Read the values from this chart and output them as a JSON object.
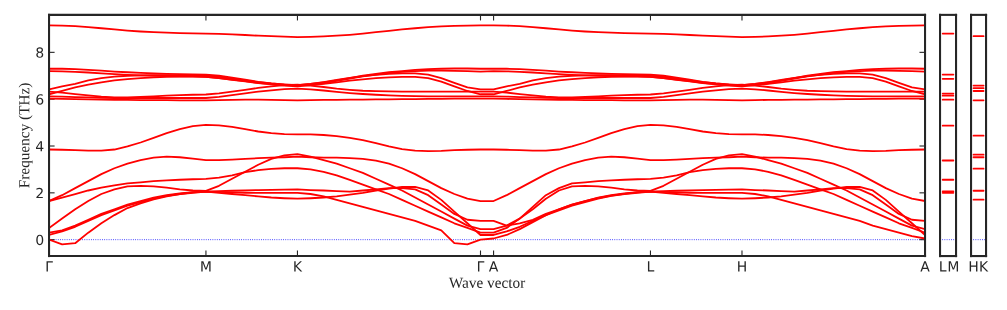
{
  "chart_data": [
    {
      "type": "line",
      "xlabel": "Wave vector",
      "ylabel": "Frequency (THz)",
      "color": "#ff0000",
      "line_style": "solid",
      "marker": "none",
      "grid": false,
      "ylim": [
        -0.7,
        9.6
      ],
      "categories": [
        "Γ",
        null,
        null,
        null,
        null,
        null,
        null,
        null,
        null,
        null,
        null,
        null,
        "M",
        null,
        null,
        null,
        null,
        null,
        null,
        "K",
        null,
        null,
        null,
        null,
        null,
        null,
        null,
        null,
        null,
        null,
        null,
        null,
        null,
        "Γ",
        "A",
        null,
        null,
        null,
        null,
        null,
        null,
        null,
        null,
        null,
        null,
        null,
        "L",
        null,
        null,
        null,
        null,
        null,
        null,
        "H",
        null,
        null,
        null,
        null,
        null,
        null,
        null,
        null,
        null,
        null,
        null,
        null,
        null,
        "A"
      ],
      "yticks": [
        0,
        2,
        4,
        6,
        8
      ],
      "ref_lines": [
        {
          "axis": "y",
          "value": 0,
          "color": "#0000ff",
          "line_style": "dotted"
        }
      ],
      "series": [
        {
          "values": [
            9.15,
            9.14,
            9.12,
            9.08,
            9.03,
            8.98,
            8.93,
            8.89,
            8.86,
            8.84,
            8.82,
            8.81,
            8.8,
            8.79,
            8.77,
            8.74,
            8.71,
            8.69,
            8.67,
            8.65,
            8.66,
            8.68,
            8.71,
            8.75,
            8.8,
            8.86,
            8.92,
            8.98,
            9.03,
            9.08,
            9.11,
            9.13,
            9.14,
            9.15,
            9.15,
            9.14,
            9.12,
            9.08,
            9.03,
            8.98,
            8.93,
            8.89,
            8.86,
            8.84,
            8.82,
            8.81,
            8.8,
            8.79,
            8.77,
            8.74,
            8.71,
            8.69,
            8.67,
            8.65,
            8.66,
            8.68,
            8.71,
            8.75,
            8.8,
            8.86,
            8.92,
            8.98,
            9.03,
            9.08,
            9.11,
            9.13,
            9.14,
            9.15
          ]
        },
        {
          "values": [
            7.3,
            7.3,
            7.28,
            7.25,
            7.22,
            7.18,
            7.15,
            7.12,
            7.1,
            7.08,
            7.07,
            7.06,
            7.05,
            7.0,
            6.92,
            6.83,
            6.74,
            6.67,
            6.62,
            6.6,
            6.65,
            6.72,
            6.8,
            6.9,
            7.0,
            7.08,
            7.15,
            7.2,
            7.25,
            7.28,
            7.3,
            7.31,
            7.31,
            7.3,
            7.3,
            7.3,
            7.28,
            7.25,
            7.22,
            7.18,
            7.15,
            7.12,
            7.1,
            7.08,
            7.07,
            7.06,
            7.05,
            7.0,
            6.92,
            6.83,
            6.74,
            6.67,
            6.62,
            6.6,
            6.65,
            6.72,
            6.8,
            6.9,
            7.0,
            7.08,
            7.15,
            7.2,
            7.25,
            7.28,
            7.3,
            7.31,
            7.31,
            7.3
          ]
        },
        {
          "values": [
            7.2,
            7.19,
            7.17,
            7.14,
            7.1,
            7.07,
            7.04,
            7.02,
            7.0,
            6.99,
            6.98,
            6.97,
            6.95,
            6.9,
            6.83,
            6.76,
            6.69,
            6.63,
            6.58,
            6.55,
            6.6,
            6.68,
            6.78,
            6.88,
            6.97,
            7.05,
            7.12,
            7.17,
            7.2,
            7.22,
            7.22,
            7.21,
            7.2,
            7.18,
            7.2,
            7.19,
            7.17,
            7.14,
            7.1,
            7.07,
            7.04,
            7.02,
            7.0,
            6.99,
            6.98,
            6.97,
            6.95,
            6.9,
            6.83,
            6.76,
            6.69,
            6.63,
            6.58,
            6.55,
            6.6,
            6.68,
            6.78,
            6.88,
            6.97,
            7.05,
            7.12,
            7.17,
            7.2,
            7.22,
            7.22,
            7.21,
            7.2,
            7.18
          ]
        },
        {
          "values": [
            6.42,
            6.55,
            6.65,
            6.8,
            6.9,
            6.96,
            7.0,
            7.02,
            7.03,
            7.03,
            7.02,
            7.01,
            7.0,
            6.95,
            6.88,
            6.8,
            6.73,
            6.67,
            6.63,
            6.6,
            6.65,
            6.73,
            6.82,
            6.91,
            6.98,
            7.04,
            7.08,
            7.1,
            7.1,
            7.05,
            6.9,
            6.7,
            6.5,
            6.42,
            6.42,
            6.55,
            6.65,
            6.8,
            6.9,
            6.96,
            7.0,
            7.02,
            7.03,
            7.03,
            7.02,
            7.01,
            7.0,
            6.95,
            6.88,
            6.8,
            6.73,
            6.67,
            6.63,
            6.6,
            6.65,
            6.73,
            6.82,
            6.91,
            6.98,
            7.04,
            7.08,
            7.1,
            7.1,
            7.05,
            6.9,
            6.7,
            6.5,
            6.42
          ]
        },
        {
          "values": [
            6.21,
            6.35,
            6.5,
            6.62,
            6.72,
            6.8,
            6.86,
            6.9,
            6.93,
            6.95,
            6.96,
            6.96,
            6.95,
            6.9,
            6.84,
            6.77,
            6.7,
            6.64,
            6.6,
            6.58,
            6.6,
            6.65,
            6.72,
            6.79,
            6.85,
            6.9,
            6.93,
            6.95,
            6.95,
            6.9,
            6.75,
            6.55,
            6.35,
            6.21,
            6.21,
            6.35,
            6.5,
            6.62,
            6.72,
            6.8,
            6.86,
            6.9,
            6.93,
            6.95,
            6.96,
            6.96,
            6.95,
            6.9,
            6.84,
            6.77,
            6.7,
            6.64,
            6.6,
            6.58,
            6.6,
            6.65,
            6.72,
            6.79,
            6.85,
            6.9,
            6.93,
            6.95,
            6.95,
            6.9,
            6.75,
            6.55,
            6.35,
            6.21
          ]
        },
        {
          "values": [
            6.32,
            6.28,
            6.22,
            6.16,
            6.11,
            6.08,
            6.08,
            6.1,
            6.12,
            6.15,
            6.17,
            6.19,
            6.2,
            6.25,
            6.32,
            6.4,
            6.48,
            6.55,
            6.6,
            6.62,
            6.58,
            6.52,
            6.45,
            6.4,
            6.36,
            6.34,
            6.33,
            6.32,
            6.32,
            6.32,
            6.32,
            6.32,
            6.32,
            6.32,
            6.32,
            6.28,
            6.22,
            6.16,
            6.11,
            6.08,
            6.08,
            6.1,
            6.12,
            6.15,
            6.17,
            6.19,
            6.2,
            6.25,
            6.32,
            6.4,
            6.48,
            6.55,
            6.6,
            6.62,
            6.58,
            6.52,
            6.45,
            6.4,
            6.36,
            6.34,
            6.33,
            6.32,
            6.32,
            6.32,
            6.32,
            6.32,
            6.32,
            6.32
          ]
        },
        {
          "values": [
            6.12,
            6.11,
            6.09,
            6.08,
            6.06,
            6.05,
            6.05,
            6.05,
            6.05,
            6.05,
            6.05,
            6.05,
            6.05,
            6.1,
            6.17,
            6.25,
            6.32,
            6.38,
            6.43,
            6.45,
            6.42,
            6.37,
            6.31,
            6.26,
            6.22,
            6.19,
            6.16,
            6.14,
            6.13,
            6.12,
            6.12,
            6.12,
            6.12,
            6.12,
            6.12,
            6.11,
            6.09,
            6.08,
            6.06,
            6.05,
            6.05,
            6.05,
            6.05,
            6.05,
            6.05,
            6.05,
            6.05,
            6.1,
            6.17,
            6.25,
            6.32,
            6.38,
            6.43,
            6.45,
            6.42,
            6.37,
            6.31,
            6.26,
            6.22,
            6.19,
            6.16,
            6.14,
            6.13,
            6.12,
            6.12,
            6.12,
            6.12,
            6.12
          ]
        },
        {
          "values": [
            6.02,
            6.01,
            6.0,
            5.99,
            5.98,
            5.97,
            5.97,
            5.96,
            5.96,
            5.96,
            5.95,
            5.95,
            5.95,
            5.96,
            5.97,
            5.98,
            5.98,
            5.97,
            5.96,
            5.95,
            5.96,
            5.97,
            5.97,
            5.98,
            5.98,
            5.99,
            5.99,
            6.0,
            6.0,
            6.01,
            6.01,
            6.02,
            6.02,
            6.02,
            6.02,
            6.01,
            6.0,
            5.99,
            5.98,
            5.97,
            5.97,
            5.96,
            5.96,
            5.96,
            5.95,
            5.95,
            5.95,
            5.96,
            5.97,
            5.98,
            5.98,
            5.97,
            5.96,
            5.95,
            5.96,
            5.97,
            5.97,
            5.98,
            5.98,
            5.99,
            5.99,
            6.0,
            6.0,
            6.01,
            6.01,
            6.02,
            6.02,
            6.02
          ]
        },
        {
          "values": [
            3.85,
            3.84,
            3.82,
            3.8,
            3.8,
            3.85,
            3.98,
            4.15,
            4.35,
            4.55,
            4.72,
            4.85,
            4.9,
            4.88,
            4.82,
            4.72,
            4.62,
            4.55,
            4.51,
            4.5,
            4.5,
            4.47,
            4.42,
            4.35,
            4.25,
            4.12,
            3.98,
            3.87,
            3.8,
            3.78,
            3.79,
            3.82,
            3.84,
            3.85,
            3.85,
            3.84,
            3.82,
            3.8,
            3.8,
            3.85,
            3.98,
            4.15,
            4.35,
            4.55,
            4.72,
            4.85,
            4.9,
            4.88,
            4.82,
            4.72,
            4.62,
            4.55,
            4.51,
            4.5,
            4.5,
            4.47,
            4.42,
            4.35,
            4.25,
            4.12,
            3.98,
            3.87,
            3.8,
            3.78,
            3.79,
            3.82,
            3.84,
            3.85
          ]
        },
        {
          "values": [
            1.65,
            1.9,
            2.2,
            2.5,
            2.8,
            3.05,
            3.25,
            3.4,
            3.5,
            3.55,
            3.52,
            3.46,
            3.4,
            3.4,
            3.42,
            3.45,
            3.48,
            3.5,
            3.52,
            3.55,
            3.52,
            3.5,
            3.5,
            3.48,
            3.45,
            3.38,
            3.25,
            3.05,
            2.8,
            2.5,
            2.2,
            1.95,
            1.75,
            1.65,
            1.65,
            1.9,
            2.2,
            2.5,
            2.8,
            3.05,
            3.25,
            3.4,
            3.5,
            3.55,
            3.52,
            3.46,
            3.4,
            3.4,
            3.42,
            3.45,
            3.48,
            3.5,
            3.52,
            3.55,
            3.52,
            3.5,
            3.5,
            3.48,
            3.45,
            3.38,
            3.25,
            3.05,
            2.8,
            2.5,
            2.2,
            1.95,
            1.75,
            1.65
          ]
        },
        {
          "values": [
            1.65,
            1.8,
            1.95,
            2.1,
            2.22,
            2.32,
            2.4,
            2.45,
            2.5,
            2.53,
            2.56,
            2.58,
            2.6,
            2.65,
            2.75,
            2.88,
            2.97,
            3.02,
            3.05,
            3.05,
            3.0,
            2.9,
            2.75,
            2.55,
            2.35,
            2.15,
            1.95,
            1.7,
            1.45,
            1.2,
            0.95,
            0.7,
            0.5,
            0.3,
            0.3,
            0.5,
            0.9,
            1.4,
            1.9,
            2.2,
            2.4,
            2.45,
            2.5,
            2.53,
            2.56,
            2.58,
            2.6,
            2.65,
            2.75,
            2.88,
            2.97,
            3.02,
            3.05,
            3.05,
            3.0,
            2.9,
            2.75,
            2.55,
            2.35,
            2.15,
            1.95,
            1.7,
            1.45,
            1.2,
            0.95,
            0.7,
            0.5,
            0.3
          ]
        },
        {
          "values": [
            0.5,
            0.9,
            1.3,
            1.65,
            1.95,
            2.15,
            2.28,
            2.3,
            2.28,
            2.22,
            2.15,
            2.1,
            2.08,
            2.3,
            2.6,
            2.9,
            3.2,
            3.45,
            3.6,
            3.65,
            3.55,
            3.4,
            3.25,
            3.05,
            2.85,
            2.6,
            2.35,
            2.1,
            1.8,
            1.5,
            1.2,
            0.9,
            0.6,
            0.45,
            0.45,
            0.6,
            0.9,
            1.3,
            1.75,
            2.1,
            2.28,
            2.3,
            2.28,
            2.22,
            2.15,
            2.1,
            2.08,
            2.3,
            2.6,
            2.9,
            3.2,
            3.45,
            3.6,
            3.65,
            3.55,
            3.4,
            3.25,
            3.05,
            2.85,
            2.6,
            2.35,
            2.1,
            1.8,
            1.5,
            1.2,
            0.9,
            0.6,
            0.45
          ]
        },
        {
          "values": [
            0.3,
            0.4,
            0.6,
            0.85,
            1.1,
            1.3,
            1.5,
            1.65,
            1.8,
            1.9,
            1.98,
            2.03,
            2.05,
            2.07,
            2.09,
            2.1,
            2.12,
            2.13,
            2.14,
            2.15,
            2.12,
            2.1,
            2.07,
            2.05,
            2.1,
            2.15,
            2.2,
            2.2,
            2.15,
            1.9,
            1.5,
            1.1,
            0.85,
            0.8,
            0.8,
            0.6,
            0.7,
            0.85,
            1.1,
            1.3,
            1.5,
            1.65,
            1.8,
            1.9,
            1.98,
            2.03,
            2.05,
            2.07,
            2.09,
            2.1,
            2.12,
            2.13,
            2.14,
            2.15,
            2.12,
            2.1,
            2.07,
            2.05,
            2.1,
            2.15,
            2.2,
            2.2,
            2.15,
            1.9,
            1.5,
            1.1,
            0.85,
            0.8
          ]
        },
        {
          "values": [
            0.2,
            0.35,
            0.55,
            0.8,
            1.05,
            1.25,
            1.45,
            1.6,
            1.75,
            1.87,
            1.95,
            2.0,
            2.05,
            2.0,
            1.95,
            1.9,
            1.85,
            1.8,
            1.77,
            1.75,
            1.77,
            1.8,
            1.85,
            1.92,
            2.0,
            2.1,
            2.18,
            2.25,
            2.25,
            2.1,
            1.7,
            1.2,
            0.7,
            0.2,
            0.2,
            0.35,
            0.55,
            0.8,
            1.05,
            1.25,
            1.45,
            1.6,
            1.75,
            1.87,
            1.95,
            2.0,
            2.05,
            2.0,
            1.95,
            1.9,
            1.85,
            1.8,
            1.77,
            1.75,
            1.77,
            1.8,
            1.85,
            1.92,
            2.0,
            2.1,
            2.18,
            2.25,
            2.25,
            2.1,
            1.7,
            1.2,
            0.7,
            0.2
          ]
        },
        {
          "values": [
            0.0,
            -0.2,
            -0.15,
            0.3,
            0.7,
            1.05,
            1.35,
            1.55,
            1.72,
            1.85,
            1.95,
            2.02,
            2.05,
            2.04,
            2.02,
            2.0,
            2.0,
            2.0,
            2.0,
            2.0,
            1.95,
            1.85,
            1.7,
            1.55,
            1.4,
            1.25,
            1.1,
            0.95,
            0.8,
            0.6,
            0.4,
            -0.15,
            -0.2,
            0.0,
            0.05,
            0.2,
            0.45,
            0.75,
            1.05,
            1.3,
            1.5,
            1.65,
            1.78,
            1.88,
            1.96,
            2.02,
            2.05,
            2.04,
            2.02,
            2.0,
            2.0,
            2.0,
            2.0,
            2.0,
            1.95,
            1.85,
            1.7,
            1.55,
            1.4,
            1.25,
            1.1,
            0.95,
            0.8,
            0.6,
            0.45,
            0.3,
            0.15,
            0.05
          ]
        }
      ]
    },
    {
      "type": "line",
      "color": "#ff0000",
      "line_style": "solid",
      "marker": "none",
      "grid": false,
      "tick_labels": "x",
      "ylim": [
        -0.7,
        9.6
      ],
      "categories": [
        "L",
        "M"
      ],
      "ref_lines": [
        {
          "axis": "y",
          "value": 0,
          "color": "#0000ff",
          "line_style": "dotted"
        }
      ],
      "series": [
        {
          "values": [
            8.8,
            8.8
          ]
        },
        {
          "values": [
            7.05,
            7.05
          ]
        },
        {
          "values": [
            6.87,
            6.87
          ]
        },
        {
          "values": [
            6.24,
            6.24
          ]
        },
        {
          "values": [
            6.15,
            6.15
          ]
        },
        {
          "values": [
            5.98,
            5.98
          ]
        },
        {
          "values": [
            4.87,
            4.87
          ]
        },
        {
          "values": [
            3.38,
            3.38
          ]
        },
        {
          "values": [
            2.56,
            2.56
          ]
        },
        {
          "values": [
            2.06,
            2.06
          ]
        },
        {
          "values": [
            2.0,
            2.0
          ]
        }
      ]
    },
    {
      "type": "line",
      "color": "#ff0000",
      "line_style": "solid",
      "marker": "none",
      "grid": false,
      "tick_labels": "x",
      "ylim": [
        -0.7,
        9.6
      ],
      "categories": [
        "H",
        "K"
      ],
      "ref_lines": [
        {
          "axis": "y",
          "value": 0,
          "color": "#0000ff",
          "line_style": "dotted"
        }
      ],
      "series": [
        {
          "values": [
            8.69,
            8.69
          ]
        },
        {
          "values": [
            6.58,
            6.58
          ]
        },
        {
          "values": [
            6.47,
            6.47
          ]
        },
        {
          "values": [
            6.35,
            6.35
          ]
        },
        {
          "values": [
            5.95,
            5.95
          ]
        },
        {
          "values": [
            4.44,
            4.44
          ]
        },
        {
          "values": [
            3.63,
            3.63
          ]
        },
        {
          "values": [
            3.52,
            3.52
          ]
        },
        {
          "values": [
            3.03,
            3.03
          ]
        },
        {
          "values": [
            2.09,
            2.09
          ]
        },
        {
          "values": [
            1.71,
            1.71
          ]
        }
      ]
    }
  ]
}
